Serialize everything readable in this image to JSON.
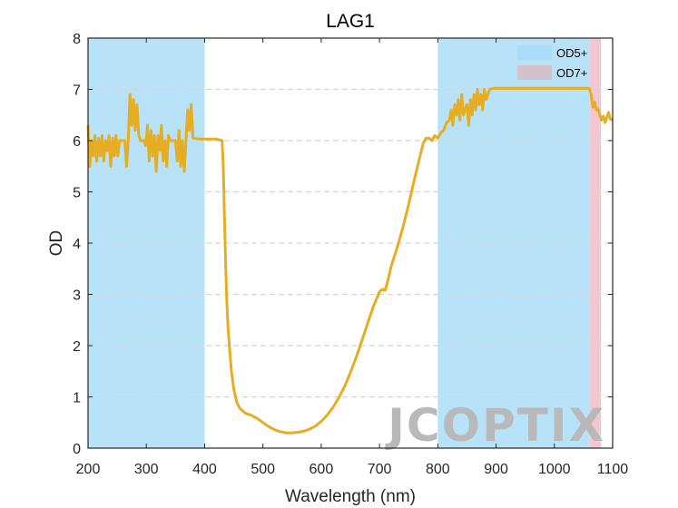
{
  "chart_data": {
    "type": "line",
    "title": "LAG1",
    "xlabel": "Wavelength (nm)",
    "ylabel": "OD",
    "xlim": [
      200,
      1100
    ],
    "ylim": [
      0,
      8
    ],
    "xticks": [
      200,
      300,
      400,
      500,
      600,
      700,
      800,
      900,
      1000,
      1100
    ],
    "yticks": [
      0,
      1,
      2,
      3,
      4,
      5,
      6,
      7,
      8
    ],
    "grid": "horizontal dashed",
    "legend_placement": "top-right",
    "bands": [
      {
        "name": "OD5+",
        "x_start": 200,
        "x_end": 400,
        "color": "#b8e2f8"
      },
      {
        "name": "OD5+",
        "x_start": 800,
        "x_end": 1060,
        "color": "#b8e2f8"
      },
      {
        "name": "OD7+",
        "x_start": 1060,
        "x_end": 1080,
        "color": "#f2c7cf"
      }
    ],
    "legend": [
      {
        "label": "OD5+",
        "color": "#a9dcf6"
      },
      {
        "label": "OD7+",
        "color": "#d3c1cb"
      }
    ],
    "series": [
      {
        "color": "#e6ad23",
        "points": [
          [
            200,
            6.3
          ],
          [
            203,
            5.5
          ],
          [
            206,
            6.0
          ],
          [
            209,
            5.7
          ],
          [
            212,
            6.1
          ],
          [
            215,
            5.6
          ],
          [
            218,
            6.05
          ],
          [
            221,
            5.7
          ],
          [
            224,
            6.1
          ],
          [
            227,
            5.6
          ],
          [
            230,
            6.0
          ],
          [
            233,
            5.8
          ],
          [
            236,
            6.1
          ],
          [
            239,
            5.5
          ],
          [
            242,
            6.05
          ],
          [
            245,
            5.7
          ],
          [
            248,
            6.1
          ],
          [
            251,
            5.7
          ],
          [
            254,
            6.0
          ],
          [
            257,
            6.0
          ],
          [
            260,
            6.0
          ],
          [
            263,
            6.0
          ],
          [
            266,
            5.5
          ],
          [
            269,
            6.0
          ],
          [
            272,
            6.9
          ],
          [
            275,
            6.3
          ],
          [
            278,
            6.8
          ],
          [
            281,
            6.2
          ],
          [
            284,
            6.7
          ],
          [
            287,
            6.1
          ],
          [
            290,
            6.0
          ],
          [
            293,
            6.0
          ],
          [
            296,
            6.0
          ],
          [
            299,
            5.9
          ],
          [
            302,
            6.3
          ],
          [
            305,
            5.6
          ],
          [
            308,
            6.2
          ],
          [
            311,
            5.7
          ],
          [
            314,
            6.1
          ],
          [
            317,
            5.4
          ],
          [
            320,
            6.1
          ],
          [
            323,
            5.8
          ],
          [
            326,
            6.3
          ],
          [
            329,
            5.6
          ],
          [
            332,
            6.0
          ],
          [
            335,
            5.5
          ],
          [
            338,
            6.1
          ],
          [
            341,
            6.0
          ],
          [
            344,
            6.0
          ],
          [
            347,
            6.0
          ],
          [
            350,
            6.0
          ],
          [
            353,
            5.6
          ],
          [
            356,
            6.2
          ],
          [
            359,
            5.5
          ],
          [
            362,
            6.0
          ],
          [
            365,
            5.4
          ],
          [
            368,
            6.0
          ],
          [
            371,
            6.6
          ],
          [
            374,
            6.2
          ],
          [
            377,
            6.7
          ],
          [
            380,
            6.05
          ],
          [
            390,
            6.03
          ],
          [
            400,
            6.03
          ],
          [
            410,
            6.03
          ],
          [
            420,
            6.03
          ],
          [
            430,
            6.0
          ],
          [
            432,
            5.5
          ],
          [
            434,
            4.5
          ],
          [
            436,
            3.6
          ],
          [
            438,
            2.9
          ],
          [
            440,
            2.4
          ],
          [
            443,
            1.9
          ],
          [
            446,
            1.5
          ],
          [
            450,
            1.15
          ],
          [
            455,
            0.9
          ],
          [
            460,
            0.78
          ],
          [
            470,
            0.68
          ],
          [
            480,
            0.64
          ],
          [
            490,
            0.58
          ],
          [
            500,
            0.5
          ],
          [
            510,
            0.42
          ],
          [
            520,
            0.36
          ],
          [
            530,
            0.32
          ],
          [
            540,
            0.3
          ],
          [
            550,
            0.3
          ],
          [
            560,
            0.31
          ],
          [
            570,
            0.33
          ],
          [
            580,
            0.37
          ],
          [
            590,
            0.43
          ],
          [
            600,
            0.52
          ],
          [
            610,
            0.64
          ],
          [
            620,
            0.79
          ],
          [
            630,
            0.98
          ],
          [
            640,
            1.2
          ],
          [
            650,
            1.47
          ],
          [
            660,
            1.77
          ],
          [
            670,
            2.1
          ],
          [
            680,
            2.45
          ],
          [
            690,
            2.78
          ],
          [
            700,
            3.05
          ],
          [
            705,
            3.1
          ],
          [
            710,
            3.08
          ],
          [
            715,
            3.3
          ],
          [
            720,
            3.55
          ],
          [
            730,
            3.9
          ],
          [
            740,
            4.3
          ],
          [
            750,
            4.75
          ],
          [
            760,
            5.25
          ],
          [
            770,
            5.72
          ],
          [
            775,
            5.95
          ],
          [
            780,
            6.05
          ],
          [
            785,
            6.05
          ],
          [
            790,
            6.0
          ],
          [
            795,
            6.1
          ],
          [
            800,
            6.05
          ],
          [
            805,
            6.15
          ],
          [
            810,
            6.2
          ],
          [
            815,
            6.35
          ],
          [
            820,
            6.4
          ],
          [
            823,
            6.6
          ],
          [
            826,
            6.3
          ],
          [
            829,
            6.7
          ],
          [
            832,
            6.5
          ],
          [
            835,
            6.8
          ],
          [
            838,
            6.4
          ],
          [
            841,
            6.9
          ],
          [
            844,
            6.5
          ],
          [
            847,
            6.6
          ],
          [
            850,
            6.7
          ],
          [
            853,
            6.3
          ],
          [
            856,
            6.8
          ],
          [
            859,
            6.5
          ],
          [
            862,
            6.9
          ],
          [
            865,
            6.6
          ],
          [
            868,
            7.0
          ],
          [
            871,
            6.7
          ],
          [
            874,
            6.9
          ],
          [
            877,
            6.6
          ],
          [
            880,
            7.0
          ],
          [
            883,
            6.8
          ],
          [
            886,
            6.9
          ],
          [
            889,
            7.0
          ],
          [
            895,
            7.02
          ],
          [
            1000,
            7.02
          ],
          [
            1060,
            7.02
          ],
          [
            1063,
            6.9
          ],
          [
            1066,
            6.65
          ],
          [
            1069,
            6.75
          ],
          [
            1072,
            6.6
          ],
          [
            1075,
            6.62
          ],
          [
            1078,
            6.5
          ],
          [
            1081,
            6.4
          ],
          [
            1084,
            6.48
          ],
          [
            1087,
            6.35
          ],
          [
            1090,
            6.45
          ],
          [
            1093,
            6.55
          ],
          [
            1096,
            6.42
          ],
          [
            1100,
            6.4
          ]
        ]
      }
    ]
  },
  "watermark": "JCOPTIX"
}
